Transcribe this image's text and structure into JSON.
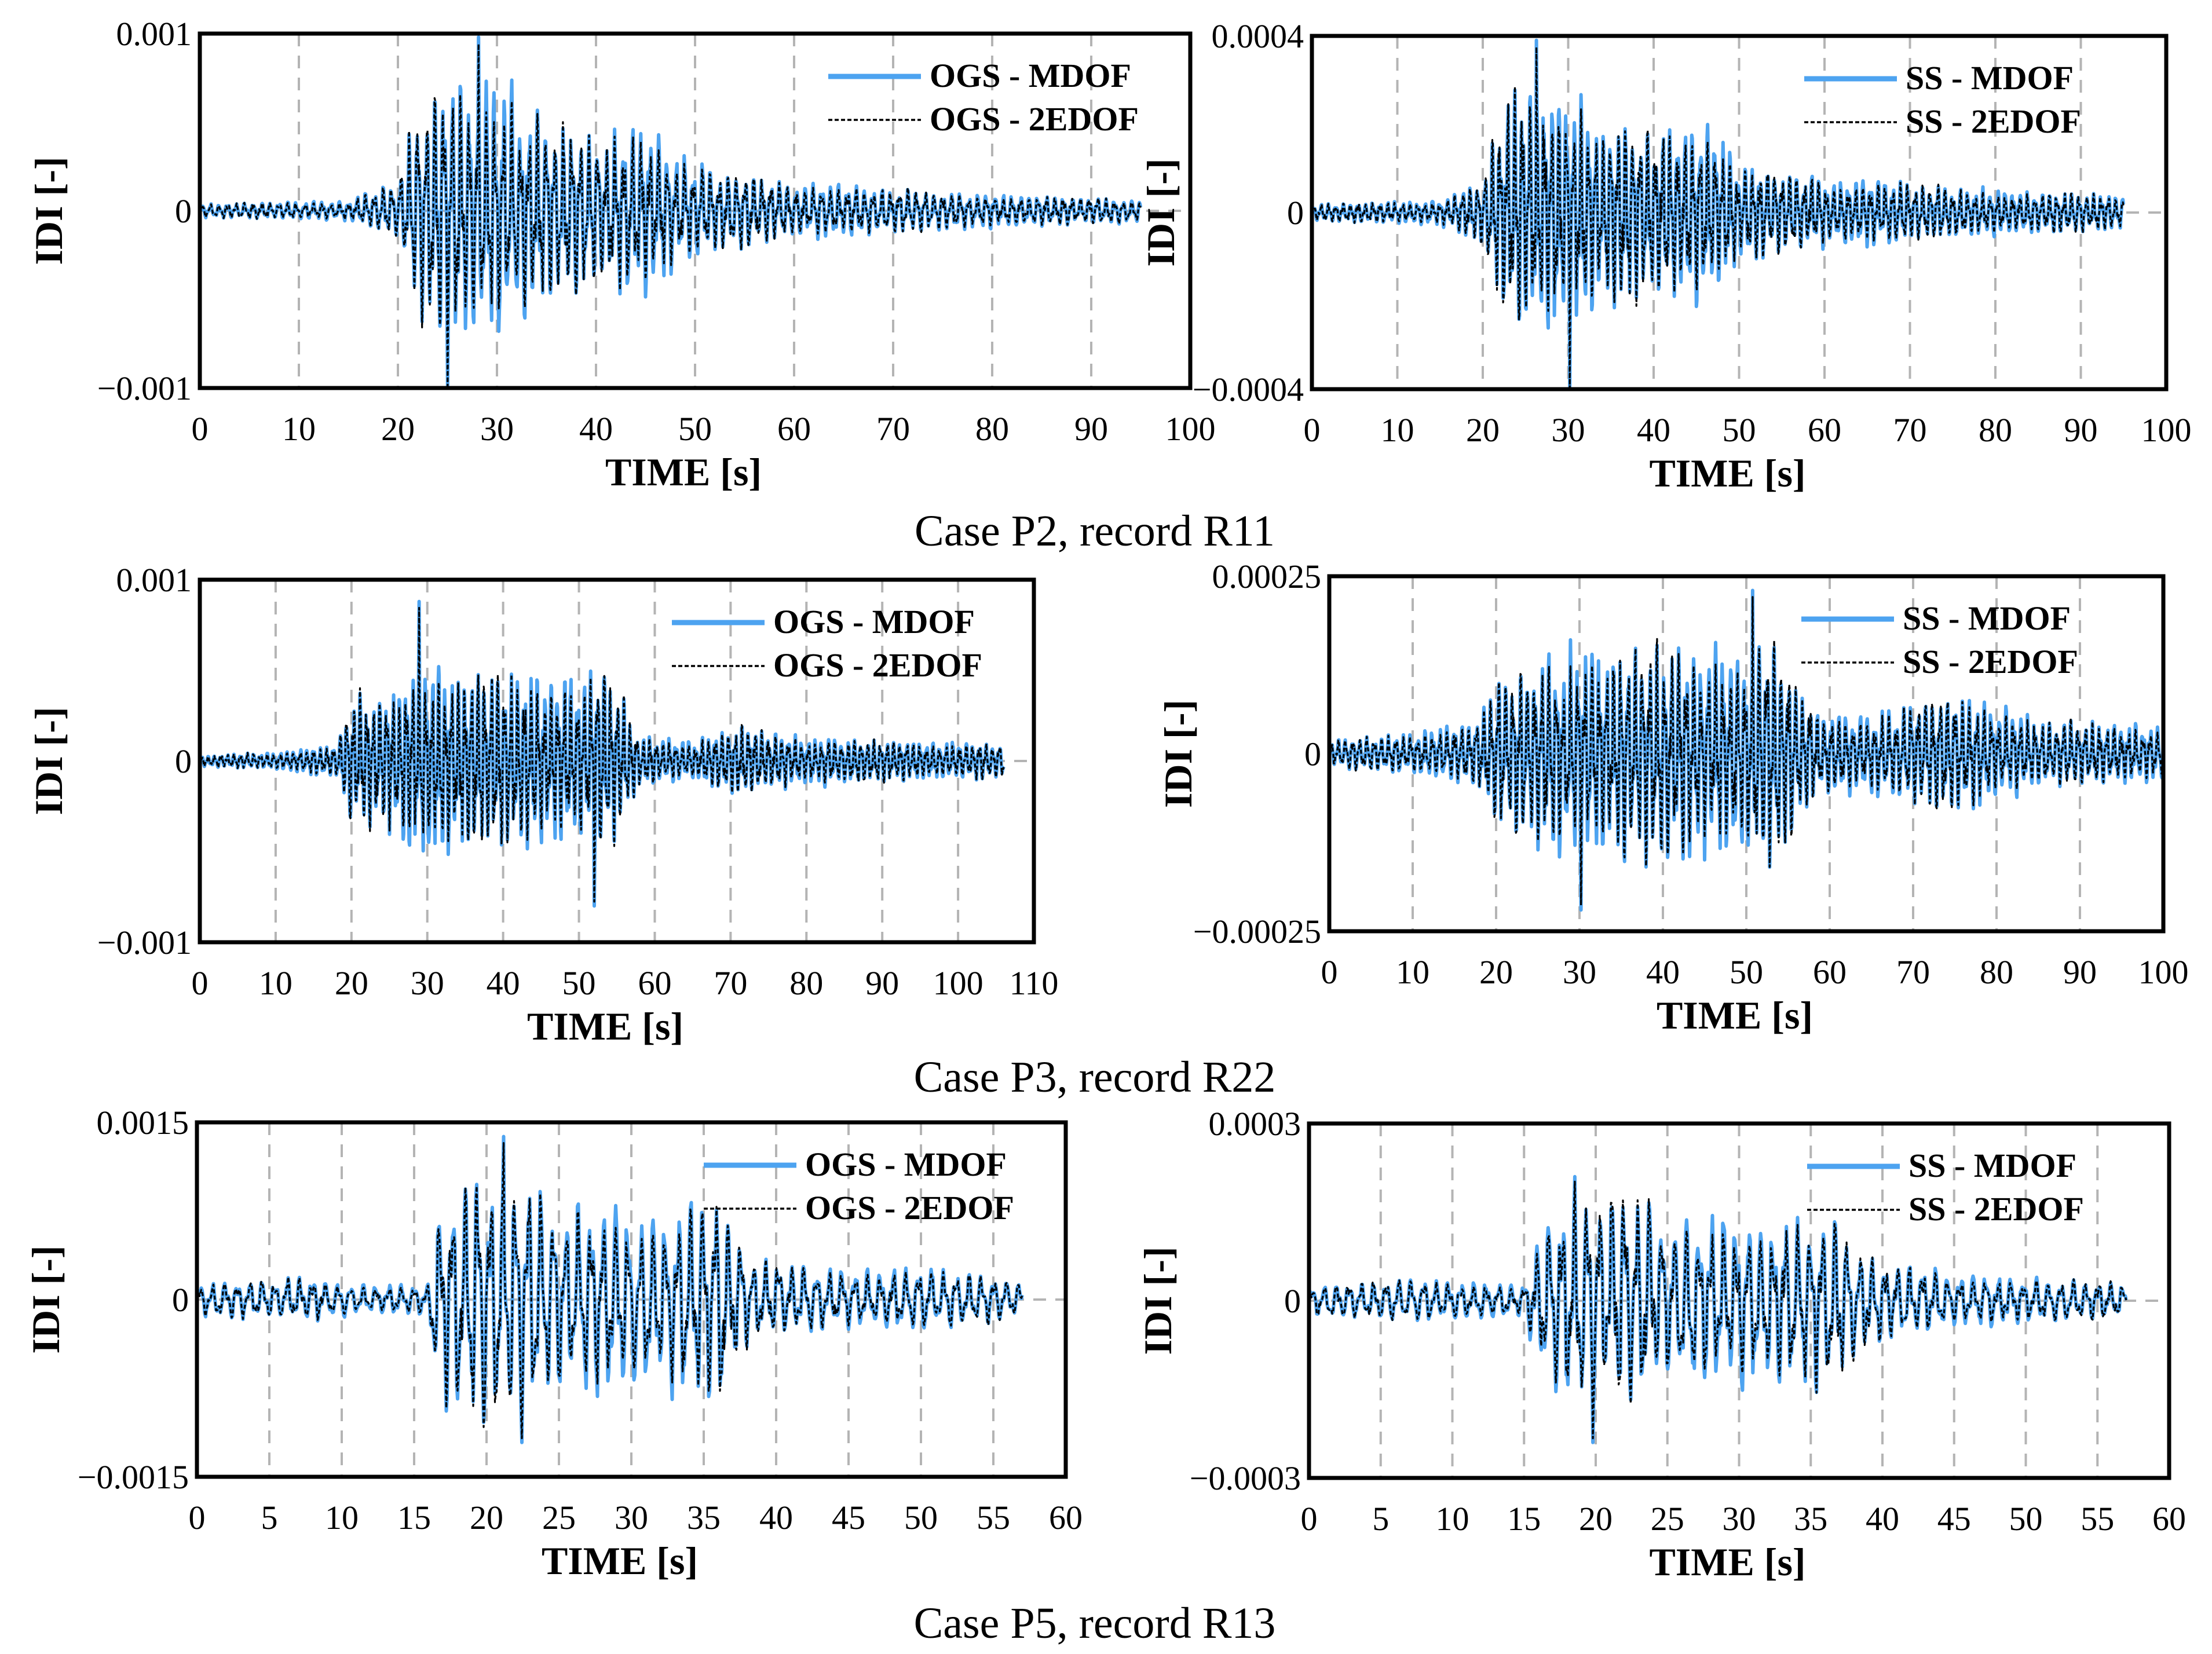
{
  "figure": {
    "colors": {
      "mdof": "#4da3f0",
      "edof": "#000000",
      "grid": "#b4b4b4",
      "frame": "#000000"
    }
  },
  "captions": [
    "Case P2, record R11",
    "Case P3, record R22",
    "Case P5, record R13"
  ],
  "chart_data": [
    {
      "type": "line",
      "case": "Case P2, record R11",
      "ylabel": "IDI [-]",
      "xlabel": "TIME [s]",
      "xlim": [
        0,
        100
      ],
      "xticks": [
        0,
        10,
        20,
        30,
        40,
        50,
        60,
        70,
        80,
        90,
        100
      ],
      "xtick_labels": [
        "0",
        "10",
        "20",
        "30",
        "40",
        "50",
        "60",
        "70",
        "80",
        "90",
        "100"
      ],
      "ylim": [
        -0.001,
        0.001
      ],
      "yticks": [
        -0.001,
        0,
        0.001
      ],
      "ytick_labels": [
        "−0.001",
        "0",
        "0.001"
      ],
      "grid": "vertical-dashed",
      "legend_position": "top-right",
      "duration": 95,
      "series": [
        {
          "name": "OGS - MDOF",
          "style": "solid"
        },
        {
          "name": "OGS - 2EDOF",
          "style": "dotted"
        }
      ],
      "peak_max": 0.00098,
      "peak_min": -0.00102,
      "envelope": [
        [
          0,
          4e-05
        ],
        [
          15,
          6e-05
        ],
        [
          20,
          0.00018
        ],
        [
          22,
          0.0006
        ],
        [
          25,
          0.0008
        ],
        [
          28,
          0.0008
        ],
        [
          30,
          0.0008
        ],
        [
          33,
          0.0006
        ],
        [
          36,
          0.0005
        ],
        [
          40,
          0.00045
        ],
        [
          45,
          0.0005
        ],
        [
          48,
          0.00035
        ],
        [
          52,
          0.00025
        ],
        [
          58,
          0.00018
        ],
        [
          66,
          0.00015
        ],
        [
          72,
          0.00012
        ],
        [
          80,
          0.0001
        ],
        [
          95,
          7e-05
        ]
      ],
      "seed": 11
    },
    {
      "type": "line",
      "case": "Case P2, record R11",
      "ylabel": "IDI [-]",
      "xlabel": "TIME [s]",
      "xlim": [
        0,
        100
      ],
      "xticks": [
        0,
        10,
        20,
        30,
        40,
        50,
        60,
        70,
        80,
        90,
        100
      ],
      "xtick_labels": [
        "0",
        "10",
        "20",
        "30",
        "40",
        "50",
        "60",
        "70",
        "80",
        "90",
        "100"
      ],
      "ylim": [
        -0.0004,
        0.0004
      ],
      "yticks": [
        -0.0004,
        0,
        0.0004
      ],
      "ytick_labels": [
        "−0.0004",
        "0",
        "0.0004"
      ],
      "grid": "vertical-dashed",
      "legend_position": "top-right",
      "duration": 95,
      "series": [
        {
          "name": "SS - MDOF",
          "style": "solid"
        },
        {
          "name": "SS - 2EDOF",
          "style": "dotted"
        }
      ],
      "peak_max": 0.00039,
      "peak_min": -0.00041,
      "envelope": [
        [
          0,
          2e-05
        ],
        [
          15,
          3e-05
        ],
        [
          20,
          8e-05
        ],
        [
          23,
          0.00028
        ],
        [
          27,
          0.0003
        ],
        [
          30,
          0.0003
        ],
        [
          34,
          0.00022
        ],
        [
          40,
          0.0002
        ],
        [
          46,
          0.00022
        ],
        [
          50,
          0.00012
        ],
        [
          60,
          8e-05
        ],
        [
          66,
          8e-05
        ],
        [
          75,
          6e-05
        ],
        [
          95,
          4e-05
        ]
      ],
      "seed": 23
    },
    {
      "type": "line",
      "case": "Case P3, record R22",
      "ylabel": "IDI [-]",
      "xlabel": "TIME [s]",
      "xlim": [
        0,
        110
      ],
      "xticks": [
        0,
        10,
        20,
        30,
        40,
        50,
        60,
        70,
        80,
        90,
        100,
        110
      ],
      "xtick_labels": [
        "0",
        "10",
        "20",
        "30",
        "40",
        "50",
        "60",
        "70",
        "80",
        "90",
        "100",
        "110"
      ],
      "ylim": [
        -0.001,
        0.001
      ],
      "yticks": [
        -0.001,
        0,
        0.001
      ],
      "ytick_labels": [
        "−0.001",
        "0",
        "0.001"
      ],
      "grid": "vertical-dashed",
      "legend_position": "top-right",
      "duration": 106,
      "series": [
        {
          "name": "OGS - MDOF",
          "style": "solid"
        },
        {
          "name": "OGS - 2EDOF",
          "style": "dotted"
        }
      ],
      "peak_max": 0.00088,
      "peak_min": -0.0008,
      "envelope": [
        [
          0,
          3e-05
        ],
        [
          10,
          5e-05
        ],
        [
          18,
          0.0001
        ],
        [
          20,
          0.00035
        ],
        [
          25,
          0.0004
        ],
        [
          30,
          0.0006
        ],
        [
          35,
          0.0005
        ],
        [
          40,
          0.0005
        ],
        [
          45,
          0.0005
        ],
        [
          50,
          0.0005
        ],
        [
          53,
          0.0006
        ],
        [
          58,
          0.00015
        ],
        [
          65,
          0.00012
        ],
        [
          72,
          0.0002
        ],
        [
          78,
          0.00015
        ],
        [
          90,
          0.00012
        ],
        [
          106,
          0.0001
        ]
      ],
      "seed": 37
    },
    {
      "type": "line",
      "case": "Case P3, record R22",
      "ylabel": "IDI [-]",
      "xlabel": "TIME [s]",
      "xlim": [
        0,
        100
      ],
      "xticks": [
        0,
        10,
        20,
        30,
        40,
        50,
        60,
        70,
        80,
        90,
        100
      ],
      "xtick_labels": [
        "0",
        "10",
        "20",
        "30",
        "40",
        "50",
        "60",
        "70",
        "80",
        "90",
        "100"
      ],
      "ylim": [
        -0.00025,
        0.00025
      ],
      "yticks": [
        -0.00025,
        0,
        0.00025
      ],
      "ytick_labels": [
        "−0.00025",
        "0",
        "0.00025"
      ],
      "grid": "vertical-dashed",
      "legend_position": "top-right",
      "duration": 100,
      "series": [
        {
          "name": "SS - MDOF",
          "style": "solid"
        },
        {
          "name": "SS - 2EDOF",
          "style": "dotted"
        }
      ],
      "peak_max": 0.00023,
      "peak_min": -0.00022,
      "envelope": [
        [
          0,
          2e-05
        ],
        [
          10,
          3e-05
        ],
        [
          18,
          5e-05
        ],
        [
          20,
          0.00011
        ],
        [
          25,
          0.00013
        ],
        [
          30,
          0.00016
        ],
        [
          35,
          0.00015
        ],
        [
          40,
          0.00016
        ],
        [
          45,
          0.00015
        ],
        [
          50,
          0.00016
        ],
        [
          53,
          0.00017
        ],
        [
          58,
          7e-05
        ],
        [
          65,
          6e-05
        ],
        [
          75,
          9e-05
        ],
        [
          85,
          5e-05
        ],
        [
          100,
          4e-05
        ]
      ],
      "seed": 41
    },
    {
      "type": "line",
      "case": "Case P5, record R13",
      "ylabel": "IDI [-]",
      "xlabel": "TIME [s]",
      "xlim": [
        0,
        60
      ],
      "xticks": [
        0,
        5,
        10,
        15,
        20,
        25,
        30,
        35,
        40,
        45,
        50,
        55,
        60
      ],
      "xtick_labels": [
        "0",
        "5",
        "10",
        "15",
        "20",
        "25",
        "30",
        "35",
        "40",
        "45",
        "50",
        "55",
        "60"
      ],
      "ylim": [
        -0.0015,
        0.0015
      ],
      "yticks": [
        -0.0015,
        0,
        0.0015
      ],
      "ytick_labels": [
        "−0.0015",
        "0",
        "0.0015"
      ],
      "grid": "vertical-dashed",
      "legend_position": "top-right",
      "duration": 57,
      "series": [
        {
          "name": "OGS - MDOF",
          "style": "solid"
        },
        {
          "name": "OGS - 2EDOF",
          "style": "dotted"
        }
      ],
      "peak_max": 0.00138,
      "peak_min": -0.00121,
      "envelope": [
        [
          0,
          0.00015
        ],
        [
          8,
          0.0002
        ],
        [
          12,
          0.00012
        ],
        [
          16,
          0.00015
        ],
        [
          16.5,
          0.0009
        ],
        [
          18,
          0.0011
        ],
        [
          22,
          0.0012
        ],
        [
          25,
          0.0008
        ],
        [
          28,
          0.0009
        ],
        [
          32,
          0.0008
        ],
        [
          36,
          0.001
        ],
        [
          38,
          0.0004
        ],
        [
          45,
          0.00025
        ],
        [
          50,
          0.0003
        ],
        [
          57,
          0.00015
        ]
      ],
      "seed": 53
    },
    {
      "type": "line",
      "case": "Case P5, record R13",
      "ylabel": "IDI [-]",
      "xlabel": "TIME [s]",
      "xlim": [
        0,
        60
      ],
      "xticks": [
        0,
        5,
        10,
        15,
        20,
        25,
        30,
        35,
        40,
        45,
        50,
        55,
        60
      ],
      "xtick_labels": [
        "0",
        "5",
        "10",
        "15",
        "20",
        "25",
        "30",
        "35",
        "40",
        "45",
        "50",
        "55",
        "60"
      ],
      "ylim": [
        -0.0003,
        0.0003
      ],
      "yticks": [
        -0.0003,
        0,
        0.0003
      ],
      "ytick_labels": [
        "−0.0003",
        "0",
        "0.0003"
      ],
      "grid": "vertical-dashed",
      "legend_position": "top-right",
      "duration": 57,
      "series": [
        {
          "name": "SS - MDOF",
          "style": "solid"
        },
        {
          "name": "SS - 2EDOF",
          "style": "dotted"
        }
      ],
      "peak_max": 0.00021,
      "peak_min": -0.00024,
      "envelope": [
        [
          0,
          3e-05
        ],
        [
          8,
          4e-05
        ],
        [
          15,
          3e-05
        ],
        [
          16.5,
          0.00016
        ],
        [
          18,
          0.00018
        ],
        [
          22,
          0.0002
        ],
        [
          25,
          0.00015
        ],
        [
          28,
          0.00016
        ],
        [
          32,
          0.00015
        ],
        [
          36,
          0.00016
        ],
        [
          39,
          8e-05
        ],
        [
          45,
          5e-05
        ],
        [
          57,
          3e-05
        ]
      ],
      "seed": 67
    }
  ]
}
